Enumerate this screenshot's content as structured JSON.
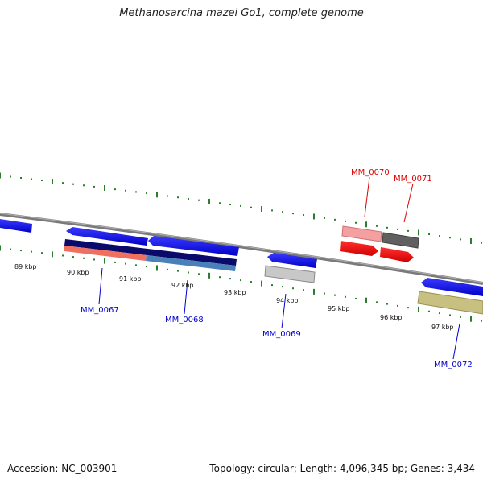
{
  "title": "Methanosarcina mazei Go1, complete genome",
  "accession": "Accession: NC_003901",
  "stats": "Topology: circular; Length: 4,096,345 bp; Genes: 3,434",
  "ticks": [
    "89 kbp",
    "90 kbp",
    "91 kbp",
    "92 kbp",
    "93 kbp",
    "94 kbp",
    "95 kbp",
    "96 kbp",
    "97 kbp"
  ],
  "genes": [
    {
      "id": "MM_0067",
      "label": "MM_0067",
      "color": "#0000cc"
    },
    {
      "id": "MM_0068",
      "label": "MM_0068",
      "color": "#0000cc"
    },
    {
      "id": "MM_0069",
      "label": "MM_0069",
      "color": "#0000cc"
    },
    {
      "id": "MM_0070",
      "label": "MM_0070",
      "color": "#dd0000"
    },
    {
      "id": "MM_0071",
      "label": "MM_0071",
      "color": "#dd0000"
    },
    {
      "id": "MM_0072",
      "label": "MM_0072",
      "color": "#0000cc"
    }
  ],
  "colors": {
    "backbone": "#808080",
    "tick": "#2e7d2e",
    "forward_gene": "#ff0000",
    "reverse_gene": "#0000ff"
  }
}
